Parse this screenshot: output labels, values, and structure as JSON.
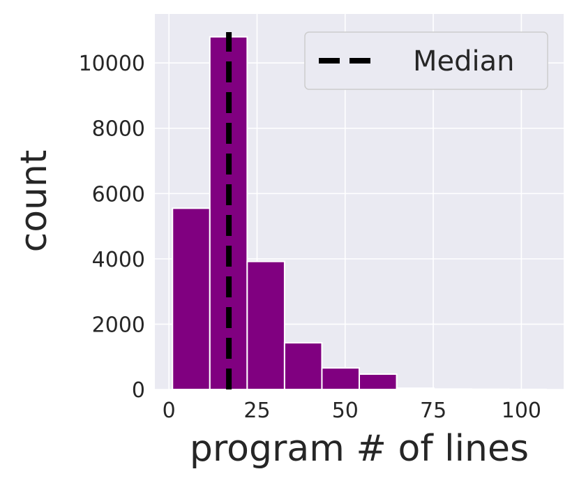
{
  "chart_data": {
    "type": "bar",
    "subtype": "histogram",
    "bins": [
      {
        "x0": 1,
        "x1": 11.6,
        "count": 5550
      },
      {
        "x0": 11.6,
        "x1": 22.2,
        "count": 10800
      },
      {
        "x0": 22.2,
        "x1": 32.8,
        "count": 3920
      },
      {
        "x0": 32.8,
        "x1": 43.4,
        "count": 1430
      },
      {
        "x0": 43.4,
        "x1": 54.0,
        "count": 660
      },
      {
        "x0": 54.0,
        "x1": 64.6,
        "count": 470
      },
      {
        "x0": 64.6,
        "x1": 75.2,
        "count": 40
      },
      {
        "x0": 75.2,
        "x1": 85.8,
        "count": 15
      },
      {
        "x0": 85.8,
        "x1": 96.4,
        "count": 8
      },
      {
        "x0": 96.4,
        "x1": 107.0,
        "count": 4
      }
    ],
    "median": 17,
    "xlabel": "program # of lines",
    "ylabel": "count",
    "xlim": [
      -4,
      112
    ],
    "ylim": [
      0,
      11500
    ],
    "xticks": [
      "0",
      "25",
      "50",
      "75",
      "100"
    ],
    "xtick_values": [
      0,
      25,
      50,
      75,
      100
    ],
    "yticks": [
      "0",
      "2000",
      "4000",
      "6000",
      "8000",
      "10000"
    ],
    "ytick_values": [
      0,
      2000,
      4000,
      6000,
      8000,
      10000
    ],
    "legend": {
      "entries": [
        "Median"
      ],
      "position": "top-right"
    },
    "grid": true,
    "colors": {
      "bar": "#800080",
      "median": "#000000",
      "background": "#eaeaf2",
      "grid": "#ffffff"
    }
  }
}
